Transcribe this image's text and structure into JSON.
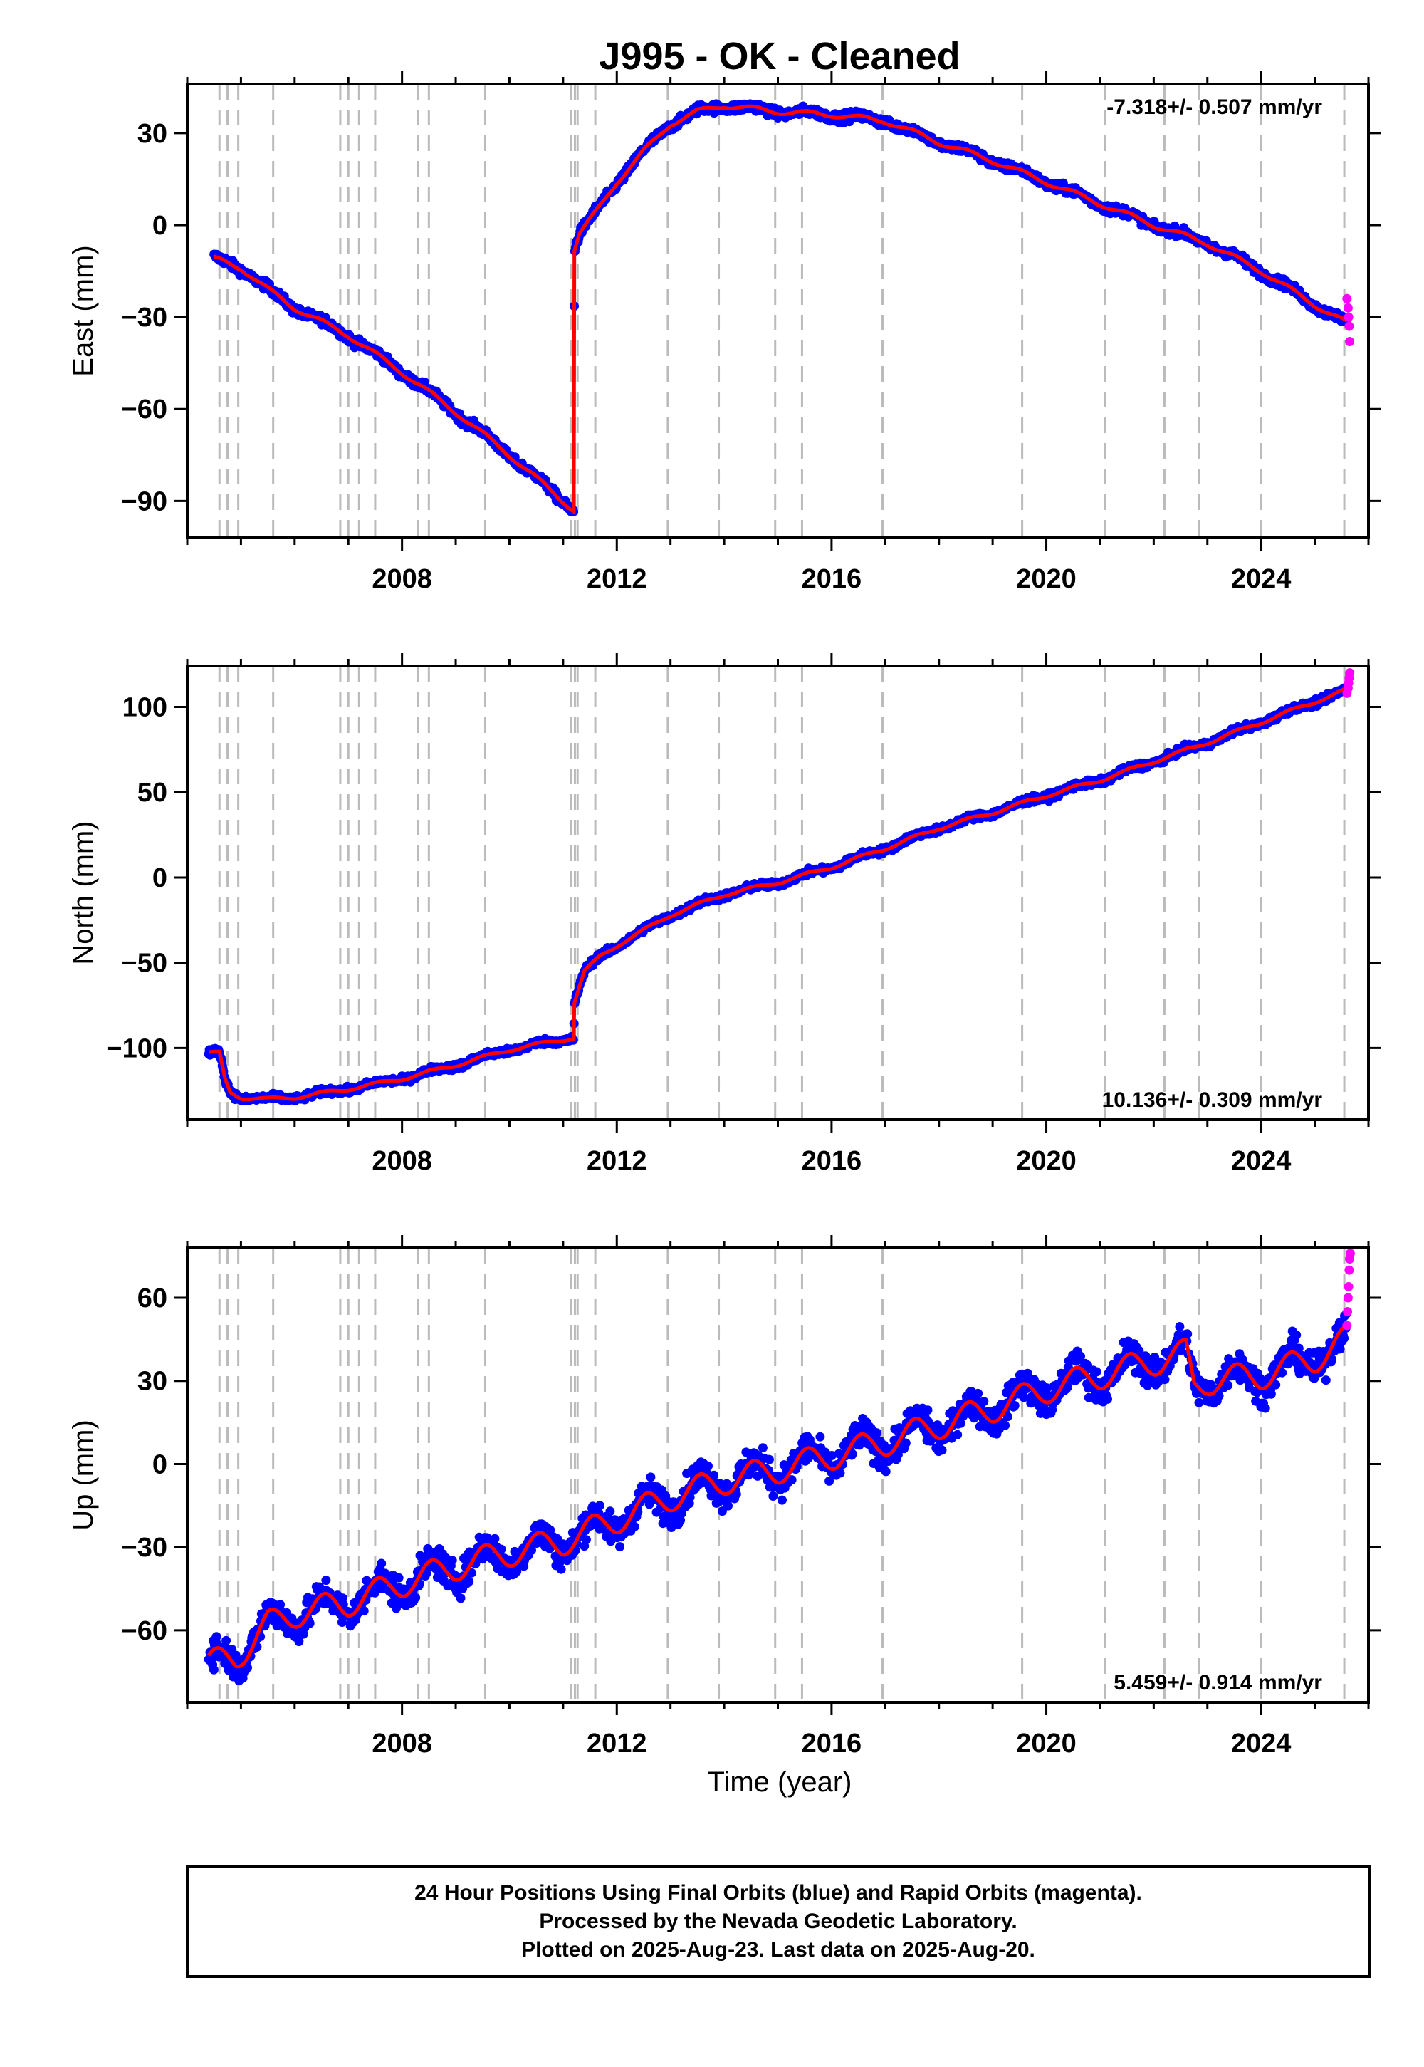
{
  "title": "J995  - OK - Cleaned",
  "xlabel": "Time (year)",
  "footer": {
    "line1": "24 Hour Positions Using Final Orbits (blue) and Rapid Orbits (magenta).",
    "line2": "Processed by the Nevada Geodetic Laboratory.",
    "line3": "Plotted on 2025-Aug-23. Last data on 2025-Aug-20."
  },
  "colors": {
    "final_orbits": "#0000ff",
    "rapid_orbits": "#ff00ff",
    "model": "#ff0000",
    "event_lines": "#bbbbbb"
  },
  "chart_data": [
    {
      "type": "scatter",
      "component": "east",
      "ylabel": "East (mm)",
      "rate_label": "-7.318+/- 0.507 mm/yr",
      "rate_position": "top-right",
      "xlim": [
        2004.0,
        2026.0
      ],
      "ylim": [
        -102,
        46
      ],
      "xticks": [
        2008,
        2012,
        2016,
        2020,
        2024
      ],
      "yticks": [
        30,
        0,
        -30,
        -60,
        -90
      ],
      "ytick_labels": [
        "30",
        "0",
        "−30",
        "−60",
        "−90"
      ],
      "noise_mm": 1.4,
      "seasonal_mm": 0.8,
      "model_trend": [
        [
          2004.5,
          -11
        ],
        [
          2004.7,
          -12
        ],
        [
          2005.0,
          -14
        ],
        [
          2005.5,
          -21
        ],
        [
          2006.0,
          -27
        ],
        [
          2007.0,
          -36
        ],
        [
          2008.0,
          -48
        ],
        [
          2009.0,
          -61
        ],
        [
          2010.0,
          -75
        ],
        [
          2011.0,
          -90
        ],
        [
          2011.2,
          -93
        ],
        [
          2011.21,
          -8
        ],
        [
          2011.3,
          -3
        ],
        [
          2011.6,
          4
        ],
        [
          2012.0,
          14
        ],
        [
          2012.5,
          24
        ],
        [
          2013.0,
          33
        ],
        [
          2013.5,
          37
        ],
        [
          2014.0,
          39
        ],
        [
          2015.0,
          37
        ],
        [
          2016.0,
          36
        ],
        [
          2017.0,
          34
        ],
        [
          2018.0,
          27
        ],
        [
          2019.0,
          21
        ],
        [
          2020.0,
          14
        ],
        [
          2021.0,
          7
        ],
        [
          2022.0,
          0
        ],
        [
          2023.0,
          -6
        ],
        [
          2024.0,
          -15
        ],
        [
          2025.0,
          -26
        ],
        [
          2025.6,
          -32
        ]
      ],
      "rapid_points": [
        [
          2025.6,
          -24
        ],
        [
          2025.62,
          -27
        ],
        [
          2025.63,
          -30
        ],
        [
          2025.64,
          -33
        ],
        [
          2025.65,
          -38
        ]
      ]
    },
    {
      "type": "scatter",
      "component": "north",
      "ylabel": "North (mm)",
      "rate_label": "10.136+/- 0.309 mm/yr",
      "rate_position": "bottom-right",
      "xlim": [
        2004.0,
        2026.0
      ],
      "ylim": [
        -142,
        124
      ],
      "xticks": [
        2008,
        2012,
        2016,
        2020,
        2024
      ],
      "yticks": [
        100,
        50,
        0,
        -50,
        -100
      ],
      "ytick_labels": [
        "100",
        "50",
        "0",
        "−50",
        "−100"
      ],
      "noise_mm": 1.8,
      "seasonal_mm": 1.0,
      "model_trend": [
        [
          2004.4,
          -103
        ],
        [
          2004.6,
          -103
        ],
        [
          2004.7,
          -118
        ],
        [
          2004.8,
          -126
        ],
        [
          2005.0,
          -129
        ],
        [
          2005.5,
          -130
        ],
        [
          2006.0,
          -129
        ],
        [
          2007.0,
          -124
        ],
        [
          2008.0,
          -118
        ],
        [
          2009.0,
          -110
        ],
        [
          2010.0,
          -101
        ],
        [
          2011.0,
          -95
        ],
        [
          2011.2,
          -94
        ],
        [
          2011.21,
          -73
        ],
        [
          2011.4,
          -55
        ],
        [
          2011.7,
          -46
        ],
        [
          2012.0,
          -40
        ],
        [
          2013.0,
          -22
        ],
        [
          2014.0,
          -10
        ],
        [
          2015.0,
          -3
        ],
        [
          2016.0,
          6
        ],
        [
          2017.0,
          17
        ],
        [
          2018.0,
          29
        ],
        [
          2019.0,
          38
        ],
        [
          2020.0,
          48
        ],
        [
          2021.0,
          57
        ],
        [
          2022.0,
          68
        ],
        [
          2023.0,
          79
        ],
        [
          2024.0,
          91
        ],
        [
          2025.0,
          103
        ],
        [
          2025.6,
          110
        ]
      ],
      "rapid_points": [
        [
          2025.6,
          108
        ],
        [
          2025.62,
          111
        ],
        [
          2025.63,
          114
        ],
        [
          2025.64,
          117
        ],
        [
          2025.65,
          120
        ]
      ]
    },
    {
      "type": "scatter",
      "component": "up",
      "ylabel": "Up (mm)",
      "rate_label": "5.459+/- 0.914 mm/yr",
      "rate_position": "bottom-right",
      "xlim": [
        2004.0,
        2026.0
      ],
      "ylim": [
        -86,
        78
      ],
      "xticks": [
        2008,
        2012,
        2016,
        2020,
        2024
      ],
      "yticks": [
        60,
        30,
        0,
        -30,
        -60
      ],
      "ytick_labels": [
        "60",
        "30",
        "0",
        "−30",
        "−60"
      ],
      "noise_mm": 5.5,
      "seasonal_mm": 5.0,
      "model_trend": [
        [
          2004.4,
          -72
        ],
        [
          2004.9,
          -70
        ],
        [
          2005.5,
          -58
        ],
        [
          2006.0,
          -54
        ],
        [
          2007.0,
          -50
        ],
        [
          2008.0,
          -43
        ],
        [
          2009.0,
          -37
        ],
        [
          2010.0,
          -32
        ],
        [
          2011.0,
          -28
        ],
        [
          2012.0,
          -20
        ],
        [
          2013.0,
          -12
        ],
        [
          2014.0,
          -6
        ],
        [
          2015.0,
          -2
        ],
        [
          2016.0,
          3
        ],
        [
          2017.0,
          8
        ],
        [
          2018.0,
          14
        ],
        [
          2019.0,
          20
        ],
        [
          2020.0,
          27
        ],
        [
          2021.0,
          32
        ],
        [
          2022.0,
          37
        ],
        [
          2022.6,
          40
        ],
        [
          2022.75,
          28
        ],
        [
          2023.0,
          30
        ],
        [
          2024.0,
          32
        ],
        [
          2025.0,
          38
        ],
        [
          2025.6,
          45
        ]
      ],
      "rapid_points": [
        [
          2025.6,
          50
        ],
        [
          2025.61,
          55
        ],
        [
          2025.62,
          60
        ],
        [
          2025.63,
          64
        ],
        [
          2025.64,
          70
        ],
        [
          2025.65,
          74
        ],
        [
          2025.66,
          76
        ]
      ]
    }
  ],
  "event_lines": [
    2004.6,
    2004.75,
    2004.95,
    2005.6,
    2006.85,
    2007.0,
    2007.2,
    2007.5,
    2008.3,
    2008.5,
    2009.55,
    2011.15,
    2011.22,
    2011.27,
    2011.6,
    2012.95,
    2013.9,
    2014.95,
    2015.45,
    2016.95,
    2019.55,
    2021.1,
    2022.2,
    2022.85,
    2024.0,
    2025.55
  ]
}
